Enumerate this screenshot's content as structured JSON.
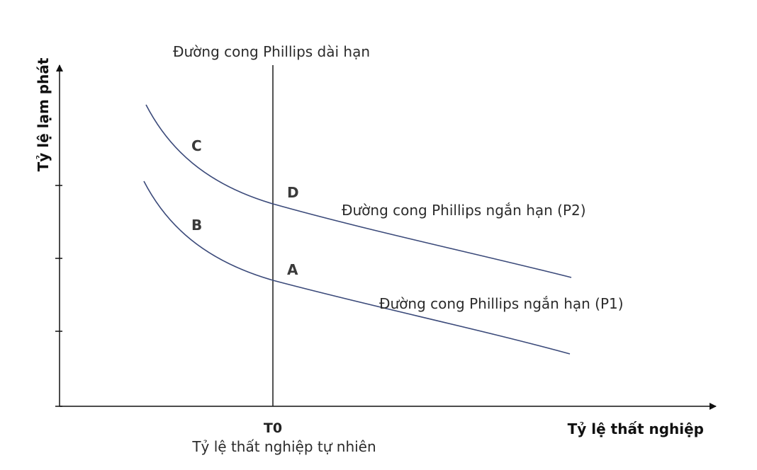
{
  "x_axis_title": "Tỷ lệ thất nghiệp",
  "y_axis_title": "Tỷ lệ lạm phát",
  "natural_rate": {
    "tick": "T0",
    "label": "Tỷ lệ thất nghiệp tự nhiên"
  },
  "curves": {
    "long_run": "Đường cong Phillips dài hạn",
    "short_run_p2": "Đường cong Phillips ngắn hạn (P2)",
    "short_run_p1": "Đường cong Phillips ngắn hạn (P1)"
  },
  "points": {
    "a": "A",
    "b": "B",
    "c": "C",
    "d": "D"
  },
  "colors": {
    "axis": "#111111",
    "long_run_line": "#1a1a1a",
    "short_run_curve": "#3b4a7a"
  }
}
